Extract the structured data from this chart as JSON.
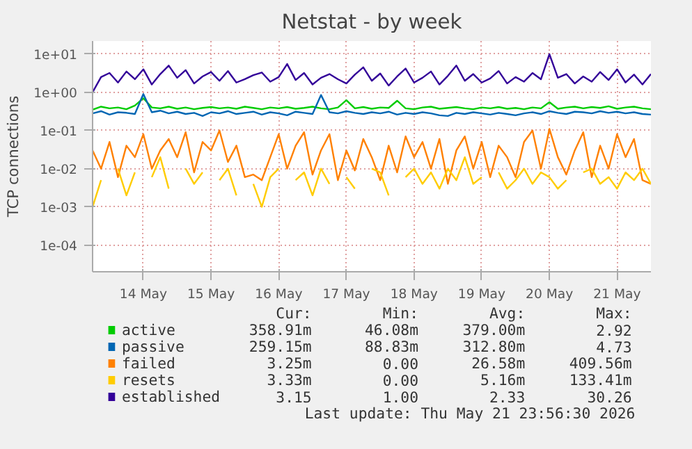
{
  "chart_data": {
    "type": "line",
    "title": "Netstat - by week",
    "ylabel": "TCP connections",
    "log": "y",
    "grid": true,
    "legend": "bottom",
    "marker": "none",
    "line_style": "solid",
    "xlim": [
      "2026-05-13T18:00",
      "2026-05-22T00:00"
    ],
    "xticks": [
      {
        "value": "2026-05-14T12:00",
        "label": "14 May"
      },
      {
        "value": "2026-05-15T12:00",
        "label": "15 May"
      },
      {
        "value": "2026-05-16T12:00",
        "label": "16 May"
      },
      {
        "value": "2026-05-17T12:00",
        "label": "17 May"
      },
      {
        "value": "2026-05-18T12:00",
        "label": "18 May"
      },
      {
        "value": "2026-05-19T12:00",
        "label": "19 May"
      },
      {
        "value": "2026-05-20T12:00",
        "label": "20 May"
      },
      {
        "value": "2026-05-21T12:00",
        "label": "21 May"
      }
    ],
    "ylim": [
      2e-05,
      22
    ],
    "yticks": [
      {
        "value": 0.0001,
        "label": "1e-04"
      },
      {
        "value": 0.001,
        "label": "1e-03"
      },
      {
        "value": 0.01,
        "label": "1e-02"
      },
      {
        "value": 0.1,
        "label": "1e-01"
      },
      {
        "value": 1,
        "label": "1e+00"
      },
      {
        "value": 10,
        "label": "1e+01"
      }
    ],
    "x": [
      "2026-05-13T18:00",
      "2026-05-13T21:00",
      "2026-05-14T00:00",
      "2026-05-14T03:00",
      "2026-05-14T06:00",
      "2026-05-14T09:00",
      "2026-05-14T12:00",
      "2026-05-14T15:00",
      "2026-05-14T18:00",
      "2026-05-14T21:00",
      "2026-05-15T00:00",
      "2026-05-15T03:00",
      "2026-05-15T06:00",
      "2026-05-15T09:00",
      "2026-05-15T12:00",
      "2026-05-15T15:00",
      "2026-05-15T18:00",
      "2026-05-15T21:00",
      "2026-05-16T00:00",
      "2026-05-16T03:00",
      "2026-05-16T06:00",
      "2026-05-16T09:00",
      "2026-05-16T12:00",
      "2026-05-16T15:00",
      "2026-05-16T18:00",
      "2026-05-16T21:00",
      "2026-05-17T00:00",
      "2026-05-17T03:00",
      "2026-05-17T06:00",
      "2026-05-17T09:00",
      "2026-05-17T12:00",
      "2026-05-17T15:00",
      "2026-05-17T18:00",
      "2026-05-17T21:00",
      "2026-05-18T00:00",
      "2026-05-18T03:00",
      "2026-05-18T06:00",
      "2026-05-18T09:00",
      "2026-05-18T12:00",
      "2026-05-18T15:00",
      "2026-05-18T18:00",
      "2026-05-18T21:00",
      "2026-05-19T00:00",
      "2026-05-19T03:00",
      "2026-05-19T06:00",
      "2026-05-19T09:00",
      "2026-05-19T12:00",
      "2026-05-19T15:00",
      "2026-05-19T18:00",
      "2026-05-19T21:00",
      "2026-05-20T00:00",
      "2026-05-20T03:00",
      "2026-05-20T06:00",
      "2026-05-20T09:00",
      "2026-05-20T12:00",
      "2026-05-20T15:00",
      "2026-05-20T18:00",
      "2026-05-20T21:00",
      "2026-05-21T00:00",
      "2026-05-21T03:00",
      "2026-05-21T06:00",
      "2026-05-21T09:00",
      "2026-05-21T12:00",
      "2026-05-21T15:00",
      "2026-05-21T18:00",
      "2026-05-21T21:00",
      "2026-05-22T00:00"
    ],
    "series": [
      {
        "name": "active",
        "color": "#00cc00",
        "values": [
          0.35,
          0.42,
          0.38,
          0.4,
          0.36,
          0.45,
          0.7,
          0.4,
          0.38,
          0.42,
          0.37,
          0.4,
          0.36,
          0.39,
          0.41,
          0.38,
          0.4,
          0.37,
          0.42,
          0.39,
          0.36,
          0.4,
          0.38,
          0.41,
          0.37,
          0.39,
          0.42,
          0.38,
          0.36,
          0.4,
          0.62,
          0.38,
          0.41,
          0.37,
          0.4,
          0.39,
          0.6,
          0.38,
          0.36,
          0.4,
          0.42,
          0.37,
          0.39,
          0.41,
          0.38,
          0.36,
          0.4,
          0.38,
          0.41,
          0.37,
          0.39,
          0.36,
          0.4,
          0.38,
          0.55,
          0.37,
          0.4,
          0.42,
          0.38,
          0.41,
          0.39,
          0.43,
          0.37,
          0.4,
          0.42,
          0.38,
          0.36
        ]
      },
      {
        "name": "passive",
        "color": "#0066b3",
        "values": [
          0.28,
          0.32,
          0.26,
          0.3,
          0.29,
          0.27,
          0.9,
          0.3,
          0.33,
          0.28,
          0.31,
          0.27,
          0.29,
          0.24,
          0.3,
          0.28,
          0.32,
          0.27,
          0.29,
          0.31,
          0.26,
          0.3,
          0.28,
          0.25,
          0.31,
          0.29,
          0.27,
          0.85,
          0.3,
          0.28,
          0.32,
          0.29,
          0.27,
          0.3,
          0.28,
          0.31,
          0.26,
          0.29,
          0.27,
          0.3,
          0.28,
          0.25,
          0.24,
          0.29,
          0.27,
          0.3,
          0.28,
          0.26,
          0.29,
          0.27,
          0.25,
          0.28,
          0.3,
          0.27,
          0.32,
          0.29,
          0.27,
          0.31,
          0.3,
          0.28,
          0.32,
          0.29,
          0.31,
          0.28,
          0.3,
          0.27,
          0.26
        ]
      },
      {
        "name": "failed",
        "color": "#ff8000",
        "values": [
          0.03,
          0.01,
          0.05,
          0.006,
          0.04,
          0.02,
          0.08,
          0.01,
          0.03,
          0.06,
          0.02,
          0.09,
          0.008,
          0.05,
          0.03,
          0.1,
          0.015,
          0.04,
          0.006,
          0.007,
          0.005,
          0.02,
          0.08,
          0.01,
          0.04,
          0.09,
          0.007,
          0.03,
          0.08,
          0.005,
          0.03,
          0.009,
          0.06,
          0.02,
          0.005,
          0.04,
          0.008,
          0.07,
          0.02,
          0.05,
          0.01,
          0.06,
          0.004,
          0.03,
          0.07,
          0.01,
          0.05,
          0.006,
          0.04,
          0.02,
          0.006,
          0.05,
          0.1,
          0.01,
          0.11,
          0.02,
          0.007,
          0.03,
          0.09,
          0.006,
          0.04,
          0.01,
          0.08,
          0.02,
          0.06,
          0.005,
          0.004
        ]
      },
      {
        "name": "resets",
        "color": "#ffcc00",
        "values": [
          0.001,
          0.005,
          null,
          0.01,
          0.002,
          0.008,
          null,
          0.006,
          0.02,
          0.003,
          null,
          0.01,
          0.004,
          0.008,
          null,
          0.005,
          0.01,
          0.002,
          null,
          0.004,
          0.001,
          0.006,
          0.01,
          null,
          0.005,
          0.008,
          0.002,
          0.01,
          0.004,
          null,
          0.006,
          0.003,
          null,
          0.01,
          0.008,
          0.002,
          null,
          0.006,
          0.01,
          0.004,
          0.008,
          0.003,
          0.01,
          0.005,
          0.02,
          0.004,
          0.006,
          null,
          0.008,
          0.003,
          0.005,
          0.01,
          0.004,
          0.008,
          0.006,
          0.003,
          0.005,
          null,
          0.008,
          0.01,
          0.004,
          0.006,
          0.003,
          0.008,
          0.005,
          0.01,
          0.004
        ]
      },
      {
        "name": "established",
        "color": "#330099",
        "values": [
          1.0,
          2.5,
          3.2,
          1.8,
          3.5,
          2.2,
          4.0,
          1.6,
          3.0,
          5.0,
          2.4,
          3.8,
          1.7,
          2.6,
          3.4,
          2.0,
          3.6,
          1.8,
          2.2,
          2.8,
          3.3,
          1.9,
          2.5,
          5.5,
          2.1,
          3.2,
          1.6,
          2.4,
          3.0,
          2.2,
          1.7,
          2.9,
          4.5,
          2.0,
          3.1,
          1.5,
          2.6,
          4.2,
          1.8,
          2.4,
          3.5,
          1.6,
          2.7,
          5.0,
          2.0,
          3.0,
          1.8,
          2.3,
          3.6,
          1.7,
          2.5,
          1.9,
          3.2,
          2.2,
          10.0,
          2.4,
          3.0,
          1.7,
          2.6,
          1.9,
          3.4,
          2.1,
          4.0,
          1.8,
          2.9,
          1.6,
          3.0
        ]
      }
    ],
    "annotations": [
      "Cur:",
      "Min:",
      "Avg:",
      "Max:",
      "358.91m",
      "46.08m",
      "379.00m",
      "2.92",
      "259.15m",
      "88.83m",
      "312.80m",
      "4.73",
      "3.25m",
      "0.00",
      "26.58m",
      "409.56m",
      "3.33m",
      "0.00",
      "5.16m",
      "133.41m",
      "3.15",
      "1.00",
      "2.33",
      "30.26",
      "Last update: Thu May 21 23:56:30 2026"
    ]
  }
}
